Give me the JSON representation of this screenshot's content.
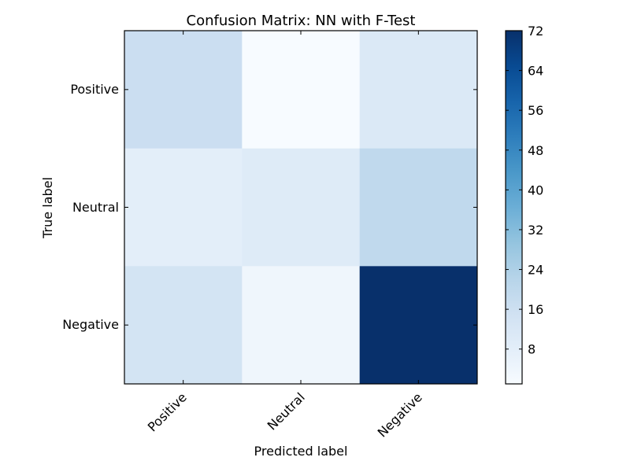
{
  "chart_data": {
    "type": "heatmap",
    "title": "Confusion Matrix: NN with F-Test",
    "xlabel": "Predicted label",
    "ylabel": "True label",
    "x_categories": [
      "Positive",
      "Neutral",
      "Negative"
    ],
    "y_categories": [
      "Positive",
      "Neutral",
      "Negative"
    ],
    "values": [
      [
        17,
        1,
        11
      ],
      [
        8,
        10,
        20
      ],
      [
        14,
        4,
        72
      ]
    ],
    "colormap": "Blues",
    "color_range": [
      1,
      72
    ],
    "colorbar_ticks": [
      8,
      16,
      24,
      32,
      40,
      48,
      56,
      64,
      72
    ],
    "colors": {
      "cmap_low": "#f7fbff",
      "cmap_high": "#08306b"
    }
  }
}
